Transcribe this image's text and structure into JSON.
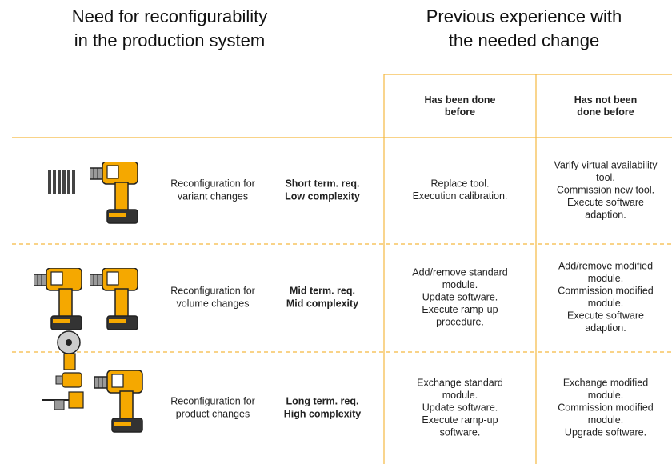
{
  "headers": {
    "left": [
      "Need for reconfigurability",
      "in the production system"
    ],
    "right": [
      "Previous experience with",
      "the needed change"
    ]
  },
  "table": {
    "columns": [
      [
        "Has been done",
        "before"
      ],
      [
        "Has not been",
        "done before"
      ]
    ],
    "rows": [
      {
        "label": [
          "Reconfiguration for",
          "variant changes"
        ],
        "requirement": [
          "Short term. req.",
          "Low complexity"
        ],
        "cells": [
          [
            "Replace tool.",
            "Execution calibration."
          ],
          [
            "Varify virtual availability",
            "tool.",
            "Commission new tool.",
            "Execute software",
            "adaption."
          ]
        ]
      },
      {
        "label": [
          "Reconfiguration for",
          "volume changes"
        ],
        "requirement": [
          "Mid term. req.",
          "Mid complexity"
        ],
        "cells": [
          [
            "Add/remove standard",
            "module.",
            "Update software.",
            "Execute ramp-up",
            "procedure."
          ],
          [
            "Add/remove modified",
            "module.",
            "Commission modified",
            "module.",
            "Execute software",
            "adaption."
          ]
        ]
      },
      {
        "label": [
          "Reconfiguration for",
          "product changes"
        ],
        "requirement": [
          "Long term. req.",
          "High complexity"
        ],
        "cells": [
          [
            "Exchange standard",
            "module.",
            "Update software.",
            "Execute ramp-up",
            "software."
          ],
          [
            "Exchange modified",
            "module.",
            "Commission modified",
            "module.",
            "Upgrade software."
          ]
        ]
      }
    ]
  }
}
